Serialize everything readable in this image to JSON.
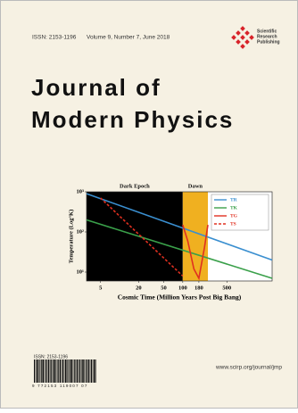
{
  "header": {
    "issn": "ISSN: 2153-1196",
    "issue": "Volume 9, Number 7, June 2018",
    "publisher": [
      "Scientific",
      "Research",
      "Publishing"
    ]
  },
  "title": [
    "Journal of",
    "Modern Physics"
  ],
  "chart_data": {
    "type": "line",
    "regions": [
      {
        "label": "Dark Epoch",
        "from": 3,
        "to": 100,
        "color": "#000000"
      },
      {
        "label": "Dawn",
        "from": 100,
        "to": 250,
        "color": "#f0b020"
      }
    ],
    "x_label": "Cosmic Time (Million Years Post Big Bang)",
    "y_label": "Temperature (Log°K)",
    "xscale": "log",
    "yscale": "log",
    "xlim": [
      3,
      2600
    ],
    "ylim": [
      6,
      1000
    ],
    "xticks": [
      5,
      20,
      50,
      100,
      180,
      500
    ],
    "yticks": [
      {
        "value": 10,
        "label": "10¹"
      },
      {
        "value": 100,
        "label": "10²"
      },
      {
        "value": 1000,
        "label": "10³"
      }
    ],
    "series": [
      {
        "name": "TR",
        "color": "#3a8fd0",
        "dash": false,
        "x": [
          3,
          2600
        ],
        "values": [
          900,
          20
        ]
      },
      {
        "name": "TK",
        "color": "#3aa04a",
        "dash": false,
        "x": [
          3,
          2600
        ],
        "values": [
          200,
          7
        ]
      },
      {
        "name": "TG",
        "color": "#e03020",
        "dash": false,
        "x": [
          100,
          120,
          150,
          180,
          220,
          250
        ],
        "values": [
          150,
          60,
          12,
          7,
          40,
          150
        ]
      },
      {
        "name": "TS",
        "color": "#e03020",
        "dash": true,
        "x": [
          5,
          100
        ],
        "values": [
          700,
          8
        ]
      }
    ]
  },
  "footer": {
    "barcode_issn": "ISSN: 2153-1196",
    "barcode_digits": "9 772153 119007 07",
    "url": "www.scirp.org/journal/jmp"
  }
}
